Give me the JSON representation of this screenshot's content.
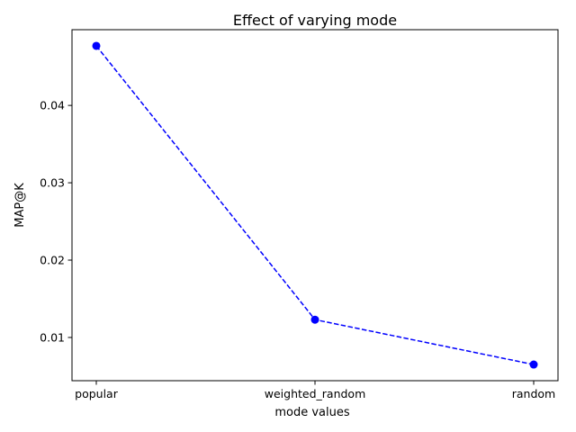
{
  "chart_data": {
    "type": "line",
    "title": "Effect of varying mode",
    "xlabel": "mode values",
    "ylabel": "MAP@K",
    "categories": [
      "popular",
      "weighted_random",
      "random"
    ],
    "series": [
      {
        "values": [
          0.0477,
          0.0123,
          0.0065
        ],
        "color": "#0000ff",
        "linestyle": "dashed",
        "marker": "circle"
      }
    ],
    "yticks": [
      0.01,
      0.02,
      0.03,
      0.04
    ],
    "ytick_labels": [
      "0.01",
      "0.02",
      "0.03",
      "0.04"
    ],
    "ylim": [
      0.00441,
      0.04979
    ],
    "grid": false,
    "legend": "none"
  }
}
